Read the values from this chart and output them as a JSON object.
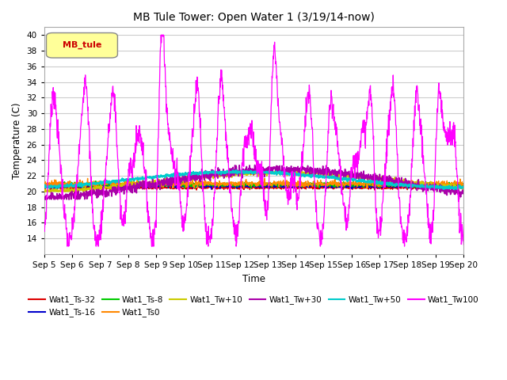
{
  "title": "MB Tule Tower: Open Water 1 (3/19/14-now)",
  "xlabel": "Time",
  "ylabel": "Temperature (C)",
  "ylim": [
    12,
    41
  ],
  "yticks": [
    14,
    16,
    18,
    20,
    22,
    24,
    26,
    28,
    30,
    32,
    34,
    36,
    38,
    40
  ],
  "xtick_labels": [
    "Sep 5",
    "Sep 6",
    "Sep 7",
    "Sep 8",
    "Sep 9",
    "Sep 10",
    "Sep 11",
    "Sep 12",
    "Sep 13",
    "Sep 14",
    "Sep 15",
    "Sep 16",
    "Sep 17",
    "Sep 18",
    "Sep 19",
    "Sep 20"
  ],
  "series_colors": {
    "Wat1_Ts-32": "#dd0000",
    "Wat1_Ts-16": "#0000cc",
    "Wat1_Ts-8": "#00cc00",
    "Wat1_Ts0": "#ff8800",
    "Wat1_Tw+10": "#cccc00",
    "Wat1_Tw+30": "#aa00aa",
    "Wat1_Tw+50": "#00cccc",
    "Wat1_Tw100": "#ff00ff"
  },
  "legend_box_color": "#ffff99",
  "legend_box_text": "MB_tule",
  "legend_box_text_color": "#cc0000",
  "background_color": "#ffffff",
  "grid_color": "#cccccc"
}
